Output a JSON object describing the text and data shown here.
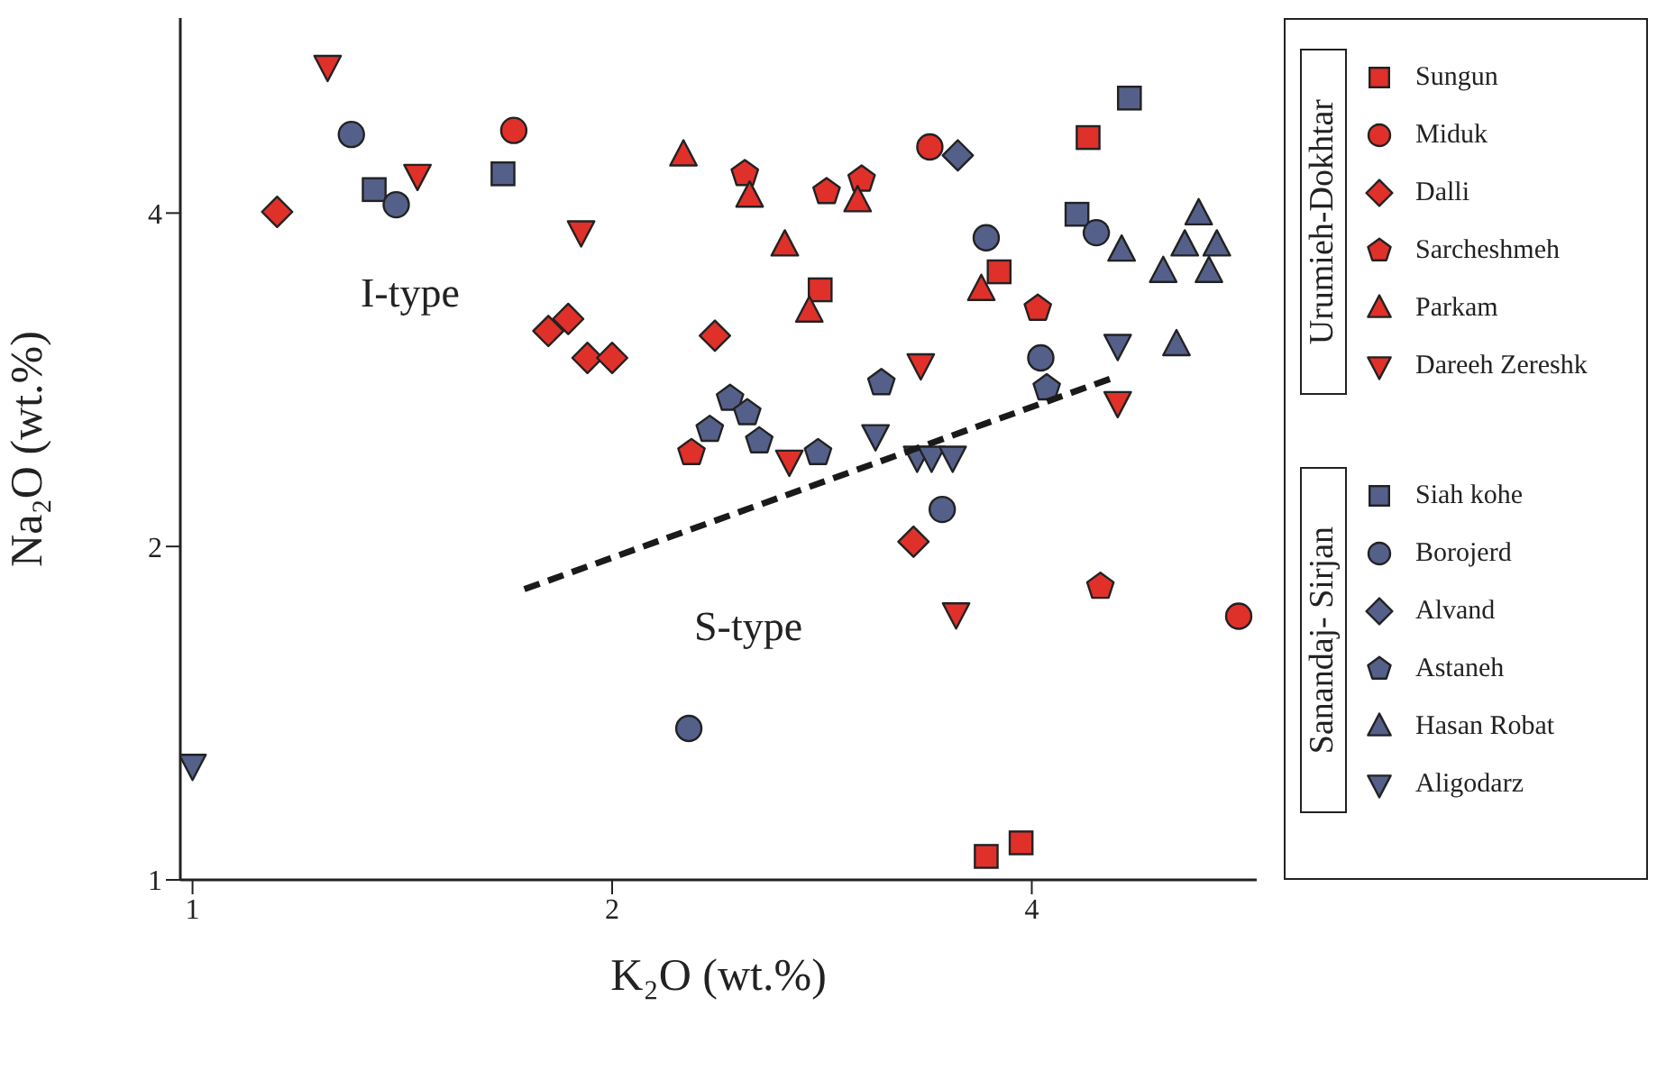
{
  "chart_data": {
    "type": "scatter",
    "xlabel": "K₂O (wt.%)",
    "ylabel": "Na₂O (wt.%)",
    "log": "xy",
    "legend": "right",
    "xlim": [
      0.98,
      5.8
    ],
    "xticks": [
      1,
      2,
      4
    ],
    "ylim": [
      1,
      6
    ],
    "yticks": [
      1,
      2,
      4
    ],
    "annotations": [
      "Urumieh-Dokhtar",
      "Sanandaj- Sirjan",
      "I-type",
      "S-type"
    ],
    "series": [
      {
        "name": "Sungun",
        "color": "#e0302a",
        "marker": "square",
        "x": [
          2.82,
          3.79,
          4.39,
          3.93,
          3.71
        ],
        "values": [
          3.41,
          3.54,
          4.68,
          1.08,
          1.05
        ]
      },
      {
        "name": "Miduk",
        "color": "#e0302a",
        "marker": "circle",
        "x": [
          1.7,
          3.38,
          5.63
        ],
        "values": [
          4.75,
          4.59,
          1.73
        ]
      },
      {
        "name": "Dalli",
        "color": "#e0302a",
        "marker": "diamond",
        "x": [
          1.15,
          1.8,
          1.86,
          1.92,
          2.0,
          2.37,
          3.29
        ],
        "values": [
          4.01,
          3.13,
          3.21,
          2.96,
          2.96,
          3.1,
          2.02
        ]
      },
      {
        "name": "Sarcheshmeh",
        "color": "#e0302a",
        "x": [
          2.49,
          2.85,
          3.02,
          4.04,
          4.48,
          2.28
        ],
        "values": [
          4.34,
          4.18,
          4.29,
          3.28,
          1.84,
          2.43
        ]
      },
      {
        "name": "Parkam",
        "color": "#e0302a",
        "marker": "triangle",
        "x": [
          2.25,
          2.51,
          2.66,
          3.0,
          2.77,
          3.68
        ],
        "values": [
          4.51,
          4.14,
          3.74,
          4.1,
          3.26,
          3.41
        ]
      },
      {
        "name": "Dareeh Zereshk",
        "color": "#e0302a",
        "marker": "triangle-down",
        "x": [
          1.25,
          1.45,
          1.9,
          3.33,
          2.68,
          4.61,
          3.53
        ],
        "values": [
          5.43,
          4.33,
          3.85,
          2.92,
          2.39,
          2.7,
          1.74
        ]
      },
      {
        "name": "Siah kohe",
        "color": "#55608a",
        "marker": "square",
        "x": [
          4.7,
          1.35,
          1.67,
          4.31
        ],
        "values": [
          5.08,
          4.2,
          4.34,
          3.99
        ]
      },
      {
        "name": "Borojerd",
        "color": "#55608a",
        "marker": "circle",
        "x": [
          1.3,
          1.4,
          3.71,
          4.45,
          4.06,
          3.45,
          2.27
        ],
        "values": [
          4.71,
          4.07,
          3.8,
          3.84,
          2.96,
          2.16,
          1.37
        ]
      },
      {
        "name": "Alvand",
        "color": "#55608a",
        "marker": "diamond",
        "x": [
          3.54
        ],
        "values": [
          4.51
        ]
      },
      {
        "name": "Astaneh",
        "color": "#55608a",
        "x": [
          2.43,
          2.5,
          2.35,
          2.55,
          2.81,
          3.12,
          4.1
        ],
        "values": [
          2.72,
          2.64,
          2.55,
          2.49,
          2.43,
          2.81,
          2.78
        ]
      },
      {
        "name": "Hasan Robat",
        "color": "#55608a",
        "marker": "triangle",
        "x": [
          5.27,
          5.15,
          5.43,
          5.36,
          4.97,
          4.64,
          5.08
        ],
        "values": [
          3.99,
          3.74,
          3.74,
          3.54,
          3.54,
          3.7,
          3.04
        ]
      },
      {
        "name": "Aligodarz",
        "color": "#55608a",
        "marker": "triangle-down",
        "x": [
          1.0,
          3.09,
          3.31,
          3.39,
          3.51,
          4.61
        ],
        "values": [
          1.27,
          2.52,
          2.41,
          2.41,
          2.41,
          3.04
        ]
      },
      {
        "type": "line",
        "color": "#1a1a1a",
        "line_style": "dashed",
        "marker": "none",
        "x": [
          1.73,
          4.61
        ],
        "values": [
          1.83,
          2.85
        ]
      }
    ]
  }
}
